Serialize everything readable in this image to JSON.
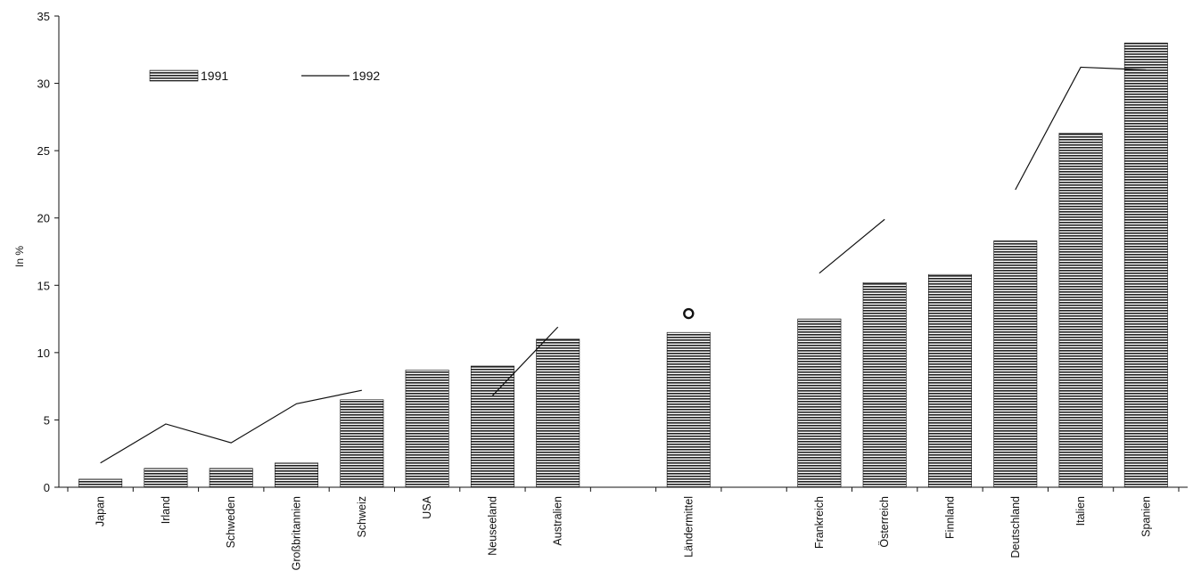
{
  "chart_data": {
    "type": "bar",
    "title": "",
    "xlabel": "",
    "ylabel": "In %",
    "ylim": [
      0,
      35
    ],
    "yticks": [
      0,
      5,
      10,
      15,
      20,
      25,
      30,
      35
    ],
    "grid": false,
    "legend_position": "top-left",
    "categories": [
      "Japan",
      "Irland",
      "Schweden",
      "Großbritannien",
      "Schweiz",
      "USA",
      "Neuseeland",
      "Australien",
      "",
      "Ländermittel",
      "",
      "Frankreich",
      "Österreich",
      "Finnland",
      "Deutschland",
      "Italien",
      "Spanien"
    ],
    "series": [
      {
        "name": "1991",
        "kind": "bar",
        "values": [
          0.6,
          1.4,
          1.4,
          1.8,
          6.5,
          8.7,
          9.0,
          11.0,
          null,
          11.5,
          null,
          12.5,
          15.2,
          15.8,
          18.3,
          26.3,
          33.0
        ]
      },
      {
        "name": "1992",
        "kind": "line",
        "segments": [
          [
            [
              0,
              1.8
            ],
            [
              1,
              4.7
            ],
            [
              2,
              3.3
            ],
            [
              3,
              6.2
            ],
            [
              4,
              7.2
            ]
          ],
          [
            [
              6,
              6.8
            ],
            [
              7,
              11.9
            ]
          ],
          [
            [
              11,
              15.9
            ],
            [
              12,
              19.9
            ]
          ],
          [
            [
              14,
              22.1
            ],
            [
              15,
              31.2
            ],
            [
              16,
              31.0
            ]
          ]
        ],
        "markers": [
          {
            "index": 9,
            "value": 12.9,
            "symbol": "circle"
          }
        ]
      }
    ]
  }
}
